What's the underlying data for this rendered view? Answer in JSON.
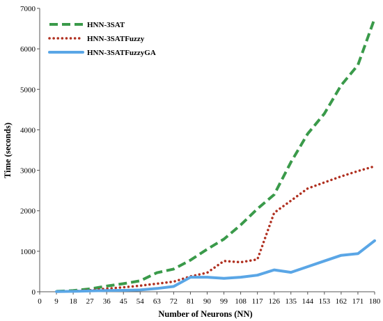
{
  "chart_data": {
    "type": "line",
    "title": "",
    "xlabel": "Number of Neurons (NN)",
    "ylabel": "Time (seconds)",
    "xlim": [
      0,
      180
    ],
    "ylim": [
      0,
      7000
    ],
    "x_ticks": [
      0,
      9,
      18,
      27,
      36,
      45,
      54,
      63,
      72,
      81,
      90,
      99,
      108,
      117,
      126,
      135,
      144,
      153,
      162,
      171,
      180
    ],
    "y_ticks": [
      0,
      1000,
      2000,
      3000,
      4000,
      5000,
      6000,
      7000
    ],
    "x": [
      9,
      18,
      27,
      36,
      45,
      54,
      63,
      72,
      81,
      90,
      99,
      108,
      117,
      126,
      135,
      144,
      153,
      162,
      171,
      180
    ],
    "grid": false,
    "legend_position": "top-left",
    "series": [
      {
        "name": "HNN-3SAT",
        "color": "#3a9a4a",
        "style": "dashed",
        "values": [
          10,
          30,
          70,
          140,
          200,
          270,
          470,
          560,
          780,
          1050,
          1300,
          1650,
          2050,
          2400,
          3200,
          3900,
          4400,
          5100,
          5600,
          6750
        ]
      },
      {
        "name": "HNN-3SATFuzzy",
        "color": "#b03020",
        "style": "dotted",
        "values": [
          5,
          15,
          40,
          75,
          110,
          150,
          200,
          250,
          380,
          470,
          760,
          730,
          800,
          1950,
          2250,
          2550,
          2700,
          2850,
          2980,
          3100
        ]
      },
      {
        "name": "HNN-3SATFuzzyGA",
        "color": "#5aa6e6",
        "style": "solid",
        "values": [
          5,
          10,
          20,
          30,
          35,
          45,
          80,
          130,
          360,
          360,
          330,
          360,
          410,
          540,
          480,
          620,
          760,
          900,
          940,
          1260
        ]
      }
    ]
  }
}
